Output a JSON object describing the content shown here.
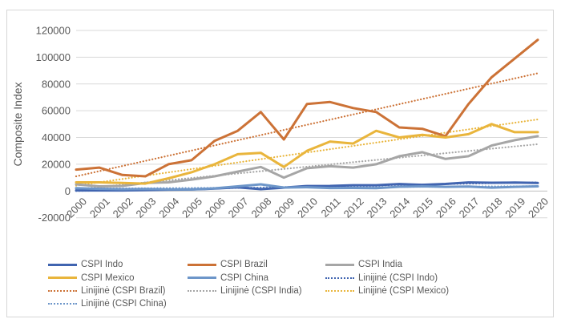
{
  "figure": {
    "background": "#ffffff",
    "border_color": "#d6d6d6"
  },
  "chart_data": {
    "type": "line",
    "title": "",
    "ylabel": "Composite Index",
    "xlabel": "",
    "grid": true,
    "legend_position": "bottom",
    "ylim": [
      -20000,
      120000
    ],
    "yticks": [
      120000,
      100000,
      80000,
      60000,
      40000,
      20000,
      0,
      -20000
    ],
    "ytick_labels": [
      "120000",
      "100000",
      "80000",
      "60000",
      "40000",
      "20000",
      "0",
      "-20000"
    ],
    "x_labels": [
      "2000",
      "2001",
      "2002",
      "2003",
      "2004",
      "2005",
      "2006",
      "2007",
      "2008",
      "2009",
      "2010",
      "2011",
      "2012",
      "2013",
      "2014",
      "2015",
      "2016",
      "2017",
      "2018",
      "2019",
      "2020"
    ],
    "style": {
      "text_color": "#595959",
      "gridline_color": "#d9d9d9",
      "axis_color": "#bfbfbf"
    },
    "series": [
      {
        "name": "CSPI Indo",
        "color": "#4064b0",
        "style": "solid",
        "values": [
          400,
          400,
          450,
          700,
          1000,
          1150,
          1800,
          2700,
          1400,
          2500,
          3700,
          3800,
          4300,
          4300,
          5200,
          4600,
          5300,
          6400,
          6200,
          6300,
          6000
        ]
      },
      {
        "name": "CSPI Brazil",
        "color": "#cc7236",
        "style": "solid",
        "values": [
          16000,
          17500,
          12000,
          11000,
          20000,
          23000,
          37500,
          45000,
          59000,
          38500,
          65000,
          66500,
          62000,
          59000,
          47500,
          46500,
          41000,
          65000,
          85000,
          99000,
          113000
        ]
      },
      {
        "name": "CSPI India",
        "color": "#a6a6a6",
        "style": "solid",
        "values": [
          5000,
          3500,
          3800,
          6000,
          6500,
          8500,
          11000,
          14500,
          18000,
          10000,
          17000,
          18500,
          17500,
          20000,
          26000,
          29000,
          24000,
          26000,
          34000,
          38000,
          41000
        ]
      },
      {
        "name": "CSPI Mexico",
        "color": "#e9b53c",
        "style": "solid",
        "values": [
          6500,
          6500,
          6000,
          5500,
          9500,
          14000,
          20000,
          27500,
          28500,
          18000,
          30000,
          37000,
          35500,
          45000,
          40000,
          42000,
          40000,
          42500,
          50000,
          44000,
          44000
        ]
      },
      {
        "name": "CSPI China",
        "color": "#6d96c9",
        "style": "solid",
        "values": [
          2100,
          1650,
          1350,
          1500,
          1250,
          1200,
          2000,
          3500,
          5000,
          2600,
          2800,
          2200,
          2300,
          2100,
          3200,
          3500,
          3100,
          3300,
          2500,
          3100,
          3500
        ]
      },
      {
        "name": "Linijinė (CSPI Indo)",
        "color": "#4064b0",
        "style": "dotted",
        "trend": true,
        "values": [
          0,
          6500
        ]
      },
      {
        "name": "Linijinė (CSPI Brazil)",
        "color": "#cc7236",
        "style": "dotted",
        "trend": true,
        "values": [
          11000,
          88000
        ]
      },
      {
        "name": "Linijinė (CSPI India)",
        "color": "#a6a6a6",
        "style": "dotted",
        "trend": true,
        "values": [
          1300,
          35000
        ]
      },
      {
        "name": "Linijinė (CSPI Mexico)",
        "color": "#e9b53c",
        "style": "dotted",
        "trend": true,
        "values": [
          4000,
          53500
        ]
      },
      {
        "name": "Linijinė (CSPI China)",
        "color": "#6d96c9",
        "style": "dotted",
        "trend": true,
        "values": [
          1800,
          3600
        ]
      }
    ]
  }
}
